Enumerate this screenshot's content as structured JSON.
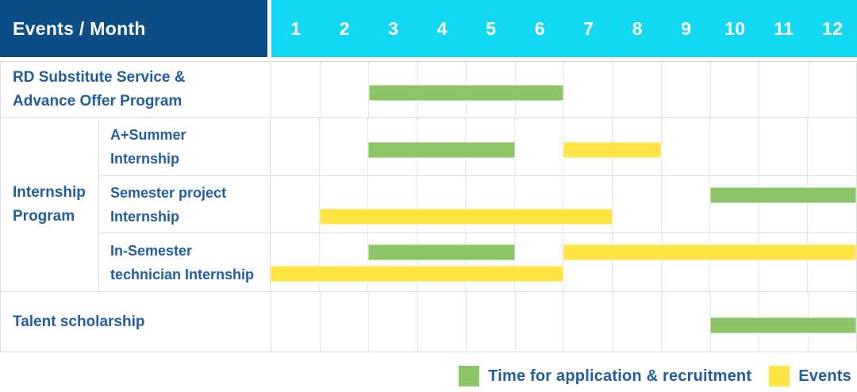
{
  "header": {
    "title": "Events / Month",
    "months": [
      "1",
      "2",
      "3",
      "4",
      "5",
      "6",
      "7",
      "8",
      "9",
      "10",
      "11",
      "12"
    ]
  },
  "colors": {
    "navy": "#0d4e86",
    "cyan": "#13d8f1",
    "label_blue": "#1f5fa0",
    "recruitment_green": "#8bc566",
    "event_yellow": "#ffe444",
    "grid_border": "#dedede",
    "grid_dotted": "#cfcfcf"
  },
  "legend": {
    "items": [
      {
        "type": "recruitment",
        "label": "Time for application & recruitment"
      },
      {
        "type": "event",
        "label": "Events"
      }
    ]
  },
  "chart_data": {
    "type": "bar",
    "subtype": "gantt-schedule",
    "title": "Events / Month",
    "x_categories": [
      "1",
      "2",
      "3",
      "4",
      "5",
      "6",
      "7",
      "8",
      "9",
      "10",
      "11",
      "12"
    ],
    "x_range": [
      1,
      12
    ],
    "legend": [
      "Time for application & recruitment",
      "Events"
    ],
    "legend_position": "bottom-right",
    "group_label_lines": [
      "Internship",
      "Program"
    ],
    "rows": [
      {
        "group": "",
        "label_lines": [
          "RD Substitute Service &",
          "Advance Offer Program"
        ],
        "lines": 1,
        "bars": [
          {
            "type": "recruitment",
            "start_month": 3,
            "end_month": 6,
            "line": 0
          }
        ]
      },
      {
        "group": "Internship Program",
        "label_lines": [
          "A+Summer",
          "Internship"
        ],
        "lines": 1,
        "bars": [
          {
            "type": "recruitment",
            "start_month": 3,
            "end_month": 5,
            "line": 0
          },
          {
            "type": "event",
            "start_month": 7,
            "end_month": 8,
            "line": 0
          }
        ]
      },
      {
        "group": "Internship Program",
        "label_lines": [
          "Semester project",
          "Internship"
        ],
        "lines": 2,
        "bars": [
          {
            "type": "recruitment",
            "start_month": 10,
            "end_month": 12,
            "line": 0
          },
          {
            "type": "event",
            "start_month": 2,
            "end_month": 7,
            "line": 1
          }
        ]
      },
      {
        "group": "Internship Program",
        "label_lines": [
          "In-Semester",
          "technician Internship"
        ],
        "lines": 2,
        "bars": [
          {
            "type": "recruitment",
            "start_month": 3,
            "end_month": 5,
            "line": 0
          },
          {
            "type": "event",
            "start_month": 7,
            "end_month": 12,
            "line": 0
          },
          {
            "type": "event",
            "start_month": 1,
            "end_month": 6,
            "line": 1
          }
        ]
      },
      {
        "group": "",
        "label_lines": [
          "Talent scholarship"
        ],
        "lines": 1,
        "bars": [
          {
            "type": "recruitment",
            "start_month": 10,
            "end_month": 12,
            "line": 0
          }
        ]
      }
    ]
  }
}
